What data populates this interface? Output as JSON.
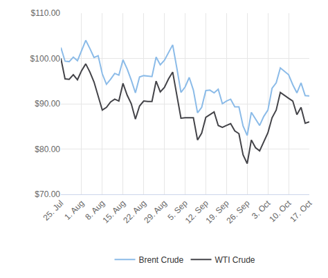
{
  "chart_data": {
    "type": "line",
    "categories": [
      "25. Jul",
      null,
      null,
      null,
      null,
      "1. Aug",
      null,
      null,
      null,
      null,
      "8. Aug",
      null,
      null,
      null,
      null,
      "15. Aug",
      null,
      null,
      null,
      null,
      "22. Aug",
      null,
      null,
      null,
      null,
      "29. Aug",
      null,
      null,
      null,
      null,
      "5. Sep",
      null,
      null,
      null,
      null,
      "12. Sep",
      null,
      null,
      null,
      null,
      "19. Sep",
      null,
      null,
      null,
      null,
      "26. Sep",
      null,
      null,
      null,
      null,
      "3. Oct",
      null,
      null,
      null,
      null,
      "10. Oct",
      null,
      null,
      null,
      null,
      "17. Oct"
    ],
    "series": [
      {
        "name": "Brent Crude",
        "color": "#8bbbe8",
        "values": [
          102.4,
          99.4,
          99.3,
          100.3,
          99.5,
          101.8,
          104.0,
          102.2,
          100.2,
          100.6,
          96.6,
          94.3,
          95.4,
          96.7,
          96.3,
          99.7,
          97.7,
          95.2,
          92.4,
          95.9,
          96.2,
          96.1,
          96.0,
          100.3,
          98.6,
          99.6,
          101.2,
          103.0,
          97.9,
          92.5,
          93.7,
          95.8,
          93.0,
          88.0,
          89.2,
          92.9,
          93.0,
          92.4,
          93.2,
          90.0,
          90.6,
          91.0,
          89.3,
          89.3,
          85.1,
          83.0,
          88.1,
          86.7,
          85.2,
          87.2,
          88.6,
          93.4,
          94.6,
          97.9,
          97.2,
          96.4,
          94.2,
          92.4,
          94.6,
          91.8,
          91.7
        ]
      },
      {
        "name": "WTI Crude",
        "color": "#434348",
        "values": [
          100.0,
          95.5,
          95.4,
          96.4,
          95.3,
          97.3,
          98.8,
          97.0,
          94.8,
          91.5,
          88.6,
          89.2,
          90.4,
          91.0,
          90.6,
          94.5,
          91.9,
          90.0,
          86.6,
          89.5,
          90.6,
          90.5,
          90.5,
          95.0,
          92.6,
          93.6,
          95.5,
          97.0,
          91.6,
          86.8,
          86.9,
          86.9,
          86.9,
          82.0,
          83.5,
          87.0,
          87.6,
          88.2,
          85.2,
          84.8,
          85.2,
          85.6,
          84.0,
          83.4,
          78.7,
          76.8,
          82.0,
          80.3,
          79.6,
          81.6,
          83.6,
          86.9,
          88.6,
          92.5,
          91.8,
          91.2,
          90.6,
          87.6,
          89.2,
          85.7,
          86.0
        ]
      }
    ],
    "ylim": [
      70,
      110
    ],
    "yticks": [
      {
        "value": 70,
        "label": "$70.00"
      },
      {
        "value": 80,
        "label": "$80.00"
      },
      {
        "value": 90,
        "label": "$90.00"
      },
      {
        "value": 100,
        "label": "$100.00"
      },
      {
        "value": 110,
        "label": "$110.00"
      }
    ],
    "grid": true,
    "legend": "bottom"
  }
}
